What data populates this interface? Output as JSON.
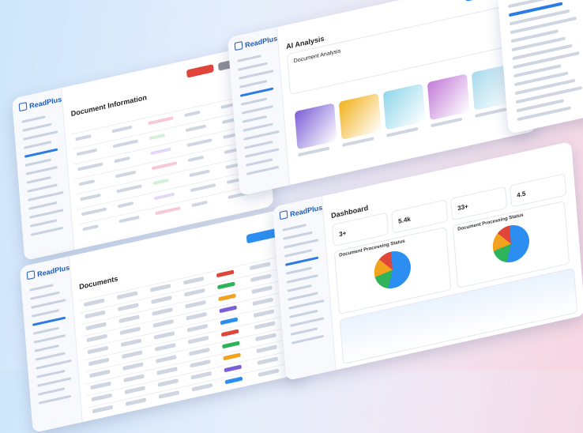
{
  "panels": [
    {
      "brand": "ReadPlus",
      "title": "Document Information"
    },
    {
      "brand": "ReadPlus",
      "title": "AI Analysis",
      "card_title": "Document Analysis"
    },
    {
      "brand": "ReadPlus",
      "title": "Dashboard",
      "stats": [
        "3+",
        "5.4k",
        "33+",
        "4.5"
      ],
      "chart_titles": [
        "Document Processing Status",
        "Document Processing Status"
      ]
    },
    {
      "brand": "ReadPlus",
      "title": "Documents"
    }
  ]
}
